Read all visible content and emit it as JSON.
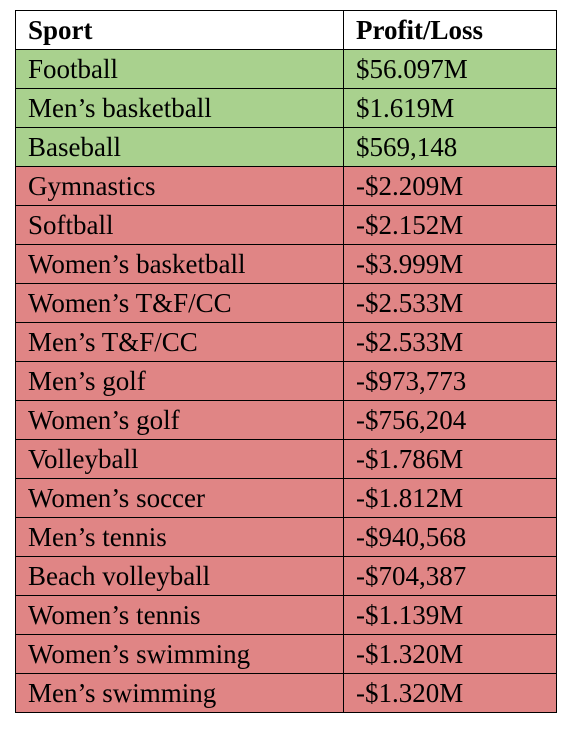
{
  "table": {
    "header": [
      "Sport",
      "Profit/Loss"
    ],
    "header_fill": "#ffffff",
    "rows": [
      {
        "cells": [
          "Football",
          "$56.097M"
        ],
        "fill": "#a9d18e"
      },
      {
        "cells": [
          "Men’s basketball",
          "$1.619M"
        ],
        "fill": "#a9d18e"
      },
      {
        "cells": [
          "Baseball",
          "$569,148"
        ],
        "fill": "#a9d18e"
      },
      {
        "cells": [
          "Gymnastics",
          "-$2.209M"
        ],
        "fill": "#e08585"
      },
      {
        "cells": [
          "Softball",
          "-$2.152M"
        ],
        "fill": "#e08585"
      },
      {
        "cells": [
          "Women’s basketball",
          "-$3.999M"
        ],
        "fill": "#e08585"
      },
      {
        "cells": [
          "Women’s T&F/CC",
          "-$2.533M"
        ],
        "fill": "#e08585"
      },
      {
        "cells": [
          "Men’s T&F/CC",
          "-$2.533M"
        ],
        "fill": "#e08585"
      },
      {
        "cells": [
          "Men’s golf",
          "-$973,773"
        ],
        "fill": "#e08585"
      },
      {
        "cells": [
          "Women’s golf",
          "-$756,204"
        ],
        "fill": "#e08585"
      },
      {
        "cells": [
          "Volleyball",
          "-$1.786M"
        ],
        "fill": "#e08585"
      },
      {
        "cells": [
          "Women’s soccer",
          "-$1.812M"
        ],
        "fill": "#e08585"
      },
      {
        "cells": [
          "Men’s tennis",
          "-$940,568"
        ],
        "fill": "#e08585"
      },
      {
        "cells": [
          "Beach volleyball",
          "-$704,387"
        ],
        "fill": "#e08585"
      },
      {
        "cells": [
          "Women’s tennis",
          "-$1.139M"
        ],
        "fill": "#e08585"
      },
      {
        "cells": [
          "Women’s swimming",
          "-$1.320M"
        ],
        "fill": "#e08585"
      },
      {
        "cells": [
          "Men’s swimming",
          "-$1.320M"
        ],
        "fill": "#e08585"
      }
    ]
  }
}
